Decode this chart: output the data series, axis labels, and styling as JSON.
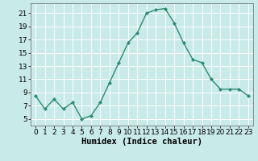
{
  "x": [
    0,
    1,
    2,
    3,
    4,
    5,
    6,
    7,
    8,
    9,
    10,
    11,
    12,
    13,
    14,
    15,
    16,
    17,
    18,
    19,
    20,
    21,
    22,
    23
  ],
  "y": [
    8.5,
    6.5,
    8.0,
    6.5,
    7.5,
    5.0,
    5.5,
    7.5,
    10.5,
    13.5,
    16.5,
    18.0,
    21.0,
    21.5,
    21.7,
    19.5,
    16.5,
    14.0,
    13.5,
    11.0,
    9.5,
    9.5,
    9.5,
    8.5
  ],
  "line_color": "#2e8b72",
  "marker": "D",
  "markersize": 2.0,
  "linewidth": 1.0,
  "bg_color": "#c8eae8",
  "grid_color": "#ffffff",
  "xlabel": "Humidex (Indice chaleur)",
  "ylabel": "",
  "xlim": [
    -0.5,
    23.5
  ],
  "ylim": [
    4.0,
    22.5
  ],
  "yticks": [
    5,
    7,
    9,
    11,
    13,
    15,
    17,
    19,
    21
  ],
  "xticks": [
    0,
    1,
    2,
    3,
    4,
    5,
    6,
    7,
    8,
    9,
    10,
    11,
    12,
    13,
    14,
    15,
    16,
    17,
    18,
    19,
    20,
    21,
    22,
    23
  ],
  "xlabel_fontsize": 7.5,
  "tick_fontsize": 6.5
}
